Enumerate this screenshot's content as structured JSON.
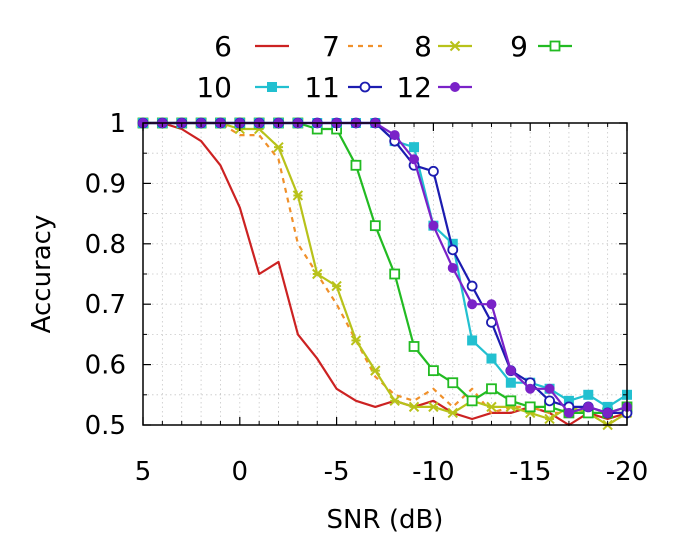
{
  "chart_data": {
    "type": "line",
    "xlabel": "SNR (dB)",
    "ylabel": "Accuracy",
    "xlim": [
      5,
      -20
    ],
    "ylim": [
      0.5,
      1
    ],
    "x_ticks": [
      "5",
      "0",
      "-5",
      "-10",
      "-15",
      "-20"
    ],
    "y_ticks": [
      "0.5",
      "0.6",
      "0.7",
      "0.8",
      "0.9",
      "1"
    ],
    "grid": true,
    "legend_position": "top",
    "x": [
      5,
      4,
      3,
      2,
      1,
      0,
      -1,
      -2,
      -3,
      -4,
      -5,
      -6,
      -7,
      -8,
      -9,
      -10,
      -11,
      -12,
      -13,
      -14,
      -15,
      -16,
      -17,
      -18,
      -19,
      -20
    ],
    "series": [
      {
        "name": "6",
        "color": "#cc2222",
        "dash": "solid",
        "marker": "none",
        "values": [
          1,
          1,
          0.99,
          0.97,
          0.93,
          0.86,
          0.75,
          0.77,
          0.65,
          0.61,
          0.56,
          0.54,
          0.53,
          0.54,
          0.53,
          0.54,
          0.52,
          0.51,
          0.52,
          0.52,
          0.53,
          0.52,
          0.5,
          0.52,
          0.51,
          0.52
        ]
      },
      {
        "name": "7",
        "color": "#f0902a",
        "dash": "dashed",
        "marker": "none",
        "values": [
          1,
          1,
          1,
          1,
          1,
          0.98,
          0.98,
          0.94,
          0.8,
          0.75,
          0.7,
          0.64,
          0.58,
          0.55,
          0.54,
          0.56,
          0.53,
          0.56,
          0.52,
          0.53,
          0.53,
          0.52,
          0.52,
          0.52,
          0.5,
          0.52
        ]
      },
      {
        "name": "8",
        "color": "#b8c21a",
        "dash": "solid",
        "marker": "star",
        "values": [
          1,
          1,
          1,
          1,
          1,
          0.99,
          0.99,
          0.96,
          0.88,
          0.75,
          0.73,
          0.64,
          0.59,
          0.54,
          0.53,
          0.53,
          0.52,
          0.54,
          0.53,
          0.53,
          0.52,
          0.51,
          0.53,
          0.52,
          0.5,
          0.52
        ]
      },
      {
        "name": "9",
        "color": "#22bb22",
        "dash": "solid",
        "marker": "square-open",
        "values": [
          1,
          1,
          1,
          1,
          1,
          1,
          1,
          1,
          1,
          0.99,
          0.99,
          0.93,
          0.83,
          0.75,
          0.63,
          0.59,
          0.57,
          0.54,
          0.56,
          0.54,
          0.53,
          0.53,
          0.52,
          0.52,
          0.52,
          0.53
        ]
      },
      {
        "name": "10",
        "color": "#22c0d0",
        "dash": "solid",
        "marker": "square-filled",
        "values": [
          1,
          1,
          1,
          1,
          1,
          1,
          1,
          1,
          1,
          1,
          1,
          1,
          1,
          0.97,
          0.96,
          0.83,
          0.8,
          0.64,
          0.61,
          0.57,
          0.57,
          0.56,
          0.54,
          0.55,
          0.53,
          0.55
        ]
      },
      {
        "name": "11",
        "color": "#1c1cb0",
        "dash": "solid",
        "marker": "circle-open",
        "values": [
          1,
          1,
          1,
          1,
          1,
          1,
          1,
          1,
          1,
          1,
          1,
          1,
          1,
          0.97,
          0.93,
          0.92,
          0.79,
          0.73,
          0.67,
          0.59,
          0.57,
          0.54,
          0.53,
          0.53,
          0.52,
          0.52
        ]
      },
      {
        "name": "12",
        "color": "#7a22c8",
        "dash": "solid",
        "marker": "circle-filled",
        "values": [
          1,
          1,
          1,
          1,
          1,
          1,
          1,
          1,
          1,
          1,
          1,
          1,
          1,
          0.98,
          0.94,
          0.83,
          0.76,
          0.7,
          0.7,
          0.59,
          0.56,
          0.56,
          0.52,
          0.53,
          0.52,
          0.53
        ]
      }
    ]
  }
}
